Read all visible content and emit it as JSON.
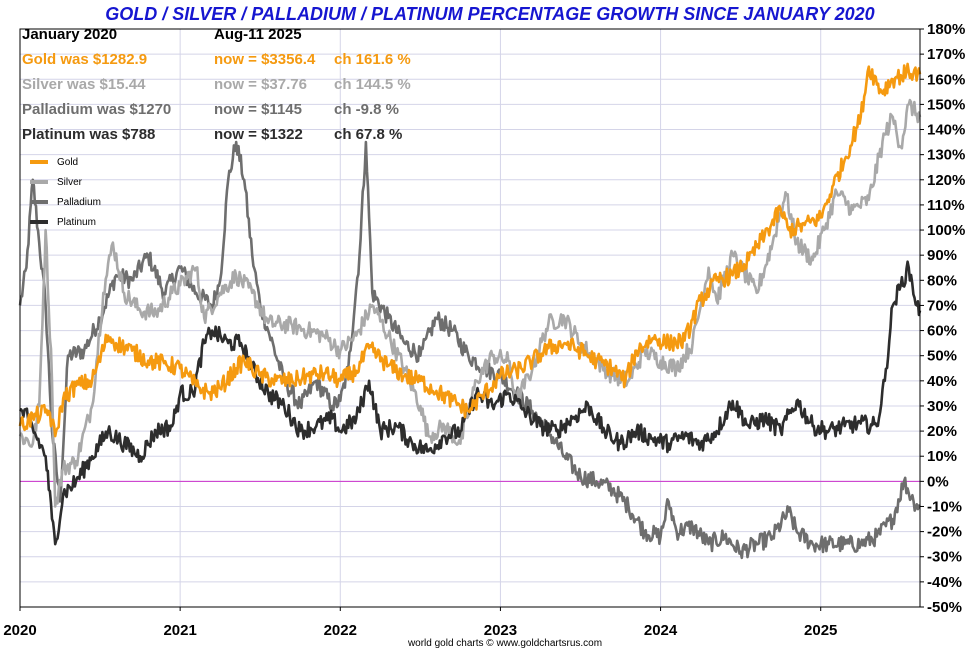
{
  "chart_data": {
    "type": "line",
    "title": "GOLD / SILVER / PALLADIUM / PLATINUM PERCENTAGE GROWTH SINCE JANUARY 2020",
    "credit": "world gold charts © www.goldchartsrus.com",
    "ylim": [
      -50,
      180
    ],
    "xlim": [
      2020.0,
      2025.62
    ],
    "grid": true,
    "legend_position": "top-left",
    "y_ticks": [
      "180%",
      "170%",
      "160%",
      "150%",
      "140%",
      "130%",
      "120%",
      "110%",
      "100%",
      "90%",
      "80%",
      "70%",
      "60%",
      "50%",
      "40%",
      "30%",
      "20%",
      "10%",
      "0%",
      "-10%",
      "-20%",
      "-30%",
      "-40%",
      "-50%"
    ],
    "x_ticks": [
      "2020",
      "2021",
      "2022",
      "2023",
      "2024",
      "2025"
    ],
    "info": {
      "header_left": "January 2020",
      "header_right": "Aug-11  2025",
      "rows": [
        {
          "was": "Gold was $1282.9",
          "now": "now = $3356.4",
          "ch": "ch 161.6 %",
          "color": "#f59a10"
        },
        {
          "was": "Silver was $15.44",
          "now": "now = $37.76",
          "ch": "ch 144.5 %",
          "color": "#a9a9a9"
        },
        {
          "was": "Palladium was $1270",
          "now": "now = $1145",
          "ch": "ch -9.8 %",
          "color": "#6e6e6e"
        },
        {
          "was": "Platinum was $788",
          "now": "now = $1322",
          "ch": "ch 67.8 %",
          "color": "#2d2d2d"
        }
      ]
    },
    "series": [
      {
        "name": "Gold",
        "color": "#f59a10",
        "points": [
          [
            2020.0,
            22
          ],
          [
            2020.1,
            26
          ],
          [
            2020.18,
            28
          ],
          [
            2020.22,
            18
          ],
          [
            2020.27,
            33
          ],
          [
            2020.35,
            38
          ],
          [
            2020.45,
            40
          ],
          [
            2020.55,
            58
          ],
          [
            2020.6,
            55
          ],
          [
            2020.7,
            52
          ],
          [
            2020.8,
            48
          ],
          [
            2020.9,
            47
          ],
          [
            2021.0,
            45
          ],
          [
            2021.1,
            38
          ],
          [
            2021.18,
            35
          ],
          [
            2021.25,
            37
          ],
          [
            2021.35,
            45
          ],
          [
            2021.4,
            48
          ],
          [
            2021.5,
            42
          ],
          [
            2021.6,
            40
          ],
          [
            2021.7,
            40
          ],
          [
            2021.8,
            42
          ],
          [
            2021.9,
            43
          ],
          [
            2022.0,
            40
          ],
          [
            2022.1,
            44
          ],
          [
            2022.18,
            53
          ],
          [
            2022.3,
            46
          ],
          [
            2022.4,
            42
          ],
          [
            2022.5,
            40
          ],
          [
            2022.6,
            36
          ],
          [
            2022.7,
            32
          ],
          [
            2022.8,
            28
          ],
          [
            2022.9,
            35
          ],
          [
            2023.0,
            42
          ],
          [
            2023.1,
            44
          ],
          [
            2023.2,
            48
          ],
          [
            2023.3,
            53
          ],
          [
            2023.4,
            55
          ],
          [
            2023.5,
            52
          ],
          [
            2023.6,
            48
          ],
          [
            2023.7,
            45
          ],
          [
            2023.78,
            40
          ],
          [
            2023.85,
            52
          ],
          [
            2023.95,
            57
          ],
          [
            2024.05,
            55
          ],
          [
            2024.15,
            56
          ],
          [
            2024.25,
            72
          ],
          [
            2024.35,
            80
          ],
          [
            2024.45,
            82
          ],
          [
            2024.55,
            88
          ],
          [
            2024.65,
            98
          ],
          [
            2024.75,
            108
          ],
          [
            2024.8,
            100
          ],
          [
            2024.9,
            102
          ],
          [
            2025.0,
            105
          ],
          [
            2025.08,
            118
          ],
          [
            2025.15,
            128
          ],
          [
            2025.25,
            145
          ],
          [
            2025.3,
            165
          ],
          [
            2025.38,
            155
          ],
          [
            2025.45,
            160
          ],
          [
            2025.55,
            163
          ],
          [
            2025.62,
            162
          ]
        ]
      },
      {
        "name": "Silver",
        "color": "#a9a9a9",
        "points": [
          [
            2020.0,
            18
          ],
          [
            2020.08,
            15
          ],
          [
            2020.12,
            30
          ],
          [
            2020.16,
            100
          ],
          [
            2020.2,
            40
          ],
          [
            2020.22,
            -10
          ],
          [
            2020.27,
            5
          ],
          [
            2020.35,
            8
          ],
          [
            2020.45,
            30
          ],
          [
            2020.52,
            75
          ],
          [
            2020.58,
            95
          ],
          [
            2020.65,
            75
          ],
          [
            2020.75,
            68
          ],
          [
            2020.85,
            67
          ],
          [
            2020.95,
            75
          ],
          [
            2021.0,
            78
          ],
          [
            2021.1,
            85
          ],
          [
            2021.15,
            65
          ],
          [
            2021.25,
            75
          ],
          [
            2021.35,
            82
          ],
          [
            2021.45,
            75
          ],
          [
            2021.55,
            63
          ],
          [
            2021.7,
            62
          ],
          [
            2021.8,
            60
          ],
          [
            2021.9,
            58
          ],
          [
            2022.0,
            52
          ],
          [
            2022.1,
            58
          ],
          [
            2022.2,
            70
          ],
          [
            2022.3,
            58
          ],
          [
            2022.4,
            45
          ],
          [
            2022.5,
            30
          ],
          [
            2022.55,
            18
          ],
          [
            2022.65,
            22
          ],
          [
            2022.75,
            15
          ],
          [
            2022.85,
            40
          ],
          [
            2022.95,
            50
          ],
          [
            2023.05,
            48
          ],
          [
            2023.1,
            32
          ],
          [
            2023.2,
            45
          ],
          [
            2023.3,
            63
          ],
          [
            2023.4,
            65
          ],
          [
            2023.5,
            55
          ],
          [
            2023.6,
            48
          ],
          [
            2023.7,
            42
          ],
          [
            2023.8,
            40
          ],
          [
            2023.9,
            52
          ],
          [
            2024.0,
            48
          ],
          [
            2024.1,
            45
          ],
          [
            2024.2,
            55
          ],
          [
            2024.3,
            85
          ],
          [
            2024.35,
            72
          ],
          [
            2024.45,
            90
          ],
          [
            2024.5,
            85
          ],
          [
            2024.6,
            75
          ],
          [
            2024.7,
            95
          ],
          [
            2024.78,
            115
          ],
          [
            2024.85,
            95
          ],
          [
            2024.95,
            88
          ],
          [
            2025.02,
            100
          ],
          [
            2025.1,
            115
          ],
          [
            2025.2,
            108
          ],
          [
            2025.3,
            112
          ],
          [
            2025.4,
            138
          ],
          [
            2025.45,
            145
          ],
          [
            2025.5,
            133
          ],
          [
            2025.55,
            150
          ],
          [
            2025.62,
            145
          ]
        ]
      },
      {
        "name": "Palladium",
        "color": "#6e6e6e",
        "points": [
          [
            2020.0,
            70
          ],
          [
            2020.04,
            85
          ],
          [
            2020.08,
            120
          ],
          [
            2020.12,
            95
          ],
          [
            2020.16,
            70
          ],
          [
            2020.2,
            20
          ],
          [
            2020.25,
            -8
          ],
          [
            2020.3,
            50
          ],
          [
            2020.4,
            52
          ],
          [
            2020.5,
            65
          ],
          [
            2020.6,
            82
          ],
          [
            2020.7,
            80
          ],
          [
            2020.8,
            90
          ],
          [
            2020.9,
            75
          ],
          [
            2021.0,
            85
          ],
          [
            2021.1,
            75
          ],
          [
            2021.2,
            70
          ],
          [
            2021.25,
            80
          ],
          [
            2021.3,
            120
          ],
          [
            2021.35,
            135
          ],
          [
            2021.4,
            120
          ],
          [
            2021.45,
            90
          ],
          [
            2021.5,
            70
          ],
          [
            2021.55,
            60
          ],
          [
            2021.65,
            40
          ],
          [
            2021.75,
            30
          ],
          [
            2021.85,
            40
          ],
          [
            2021.95,
            30
          ],
          [
            2022.0,
            32
          ],
          [
            2022.05,
            45
          ],
          [
            2022.12,
            90
          ],
          [
            2022.16,
            135
          ],
          [
            2022.2,
            75
          ],
          [
            2022.3,
            65
          ],
          [
            2022.4,
            55
          ],
          [
            2022.5,
            50
          ],
          [
            2022.6,
            65
          ],
          [
            2022.7,
            60
          ],
          [
            2022.8,
            50
          ],
          [
            2022.9,
            45
          ],
          [
            2023.0,
            42
          ],
          [
            2023.1,
            35
          ],
          [
            2023.2,
            28
          ],
          [
            2023.3,
            20
          ],
          [
            2023.4,
            10
          ],
          [
            2023.5,
            2
          ],
          [
            2023.6,
            0
          ],
          [
            2023.7,
            -3
          ],
          [
            2023.8,
            -10
          ],
          [
            2023.9,
            -20
          ],
          [
            2024.0,
            -22
          ],
          [
            2024.05,
            -8
          ],
          [
            2024.1,
            -20
          ],
          [
            2024.2,
            -18
          ],
          [
            2024.3,
            -25
          ],
          [
            2024.4,
            -22
          ],
          [
            2024.5,
            -28
          ],
          [
            2024.6,
            -25
          ],
          [
            2024.7,
            -22
          ],
          [
            2024.8,
            -12
          ],
          [
            2024.85,
            -20
          ],
          [
            2024.95,
            -25
          ],
          [
            2025.05,
            -25
          ],
          [
            2025.15,
            -25
          ],
          [
            2025.25,
            -25
          ],
          [
            2025.35,
            -22
          ],
          [
            2025.45,
            -15
          ],
          [
            2025.52,
            0
          ],
          [
            2025.58,
            -8
          ],
          [
            2025.62,
            -10
          ]
        ]
      },
      {
        "name": "Platinum",
        "color": "#2d2d2d",
        "points": [
          [
            2020.0,
            28
          ],
          [
            2020.05,
            25
          ],
          [
            2020.1,
            18
          ],
          [
            2020.16,
            10
          ],
          [
            2020.2,
            -15
          ],
          [
            2020.22,
            -25
          ],
          [
            2020.27,
            -5
          ],
          [
            2020.35,
            0
          ],
          [
            2020.45,
            10
          ],
          [
            2020.55,
            20
          ],
          [
            2020.65,
            15
          ],
          [
            2020.75,
            10
          ],
          [
            2020.85,
            20
          ],
          [
            2020.95,
            22
          ],
          [
            2021.0,
            35
          ],
          [
            2021.08,
            35
          ],
          [
            2021.15,
            55
          ],
          [
            2021.2,
            60
          ],
          [
            2021.3,
            55
          ],
          [
            2021.38,
            55
          ],
          [
            2021.45,
            45
          ],
          [
            2021.55,
            35
          ],
          [
            2021.65,
            30
          ],
          [
            2021.75,
            20
          ],
          [
            2021.85,
            22
          ],
          [
            2021.95,
            25
          ],
          [
            2022.0,
            20
          ],
          [
            2022.1,
            25
          ],
          [
            2022.18,
            40
          ],
          [
            2022.25,
            20
          ],
          [
            2022.35,
            22
          ],
          [
            2022.45,
            15
          ],
          [
            2022.55,
            12
          ],
          [
            2022.65,
            18
          ],
          [
            2022.75,
            20
          ],
          [
            2022.85,
            35
          ],
          [
            2022.95,
            30
          ],
          [
            2023.05,
            35
          ],
          [
            2023.15,
            28
          ],
          [
            2023.25,
            22
          ],
          [
            2023.35,
            20
          ],
          [
            2023.45,
            25
          ],
          [
            2023.55,
            30
          ],
          [
            2023.65,
            20
          ],
          [
            2023.75,
            15
          ],
          [
            2023.85,
            20
          ],
          [
            2023.95,
            17
          ],
          [
            2024.05,
            15
          ],
          [
            2024.15,
            18
          ],
          [
            2024.25,
            15
          ],
          [
            2024.35,
            20
          ],
          [
            2024.45,
            32
          ],
          [
            2024.55,
            22
          ],
          [
            2024.65,
            25
          ],
          [
            2024.75,
            20
          ],
          [
            2024.85,
            32
          ],
          [
            2024.95,
            22
          ],
          [
            2025.05,
            20
          ],
          [
            2025.15,
            22
          ],
          [
            2025.25,
            23
          ],
          [
            2025.35,
            22
          ],
          [
            2025.4,
            40
          ],
          [
            2025.45,
            70
          ],
          [
            2025.5,
            78
          ],
          [
            2025.55,
            85
          ],
          [
            2025.6,
            70
          ],
          [
            2025.62,
            68
          ]
        ]
      }
    ]
  }
}
